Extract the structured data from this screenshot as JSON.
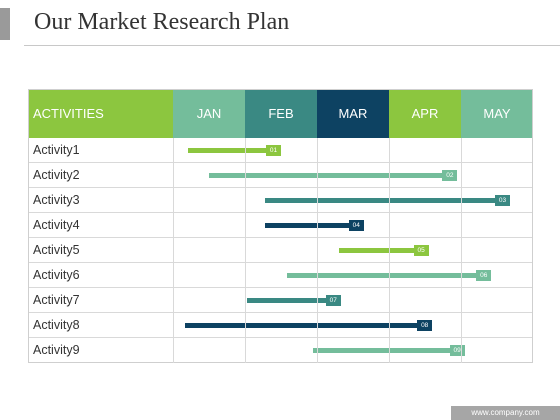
{
  "slide": {
    "title": "Our Market Research Plan"
  },
  "colors": {
    "lime": "#8cc63f",
    "teal_light": "#74bd9b",
    "teal_dark": "#3a8983",
    "navy": "#0d4262",
    "accent_grey": "#9a9a9a",
    "footer_grey": "#a6a6a6"
  },
  "gantt": {
    "activities_header": "ACTIVITIES",
    "activities_header_color": "#8cc63f",
    "months": [
      {
        "label": "JAN",
        "color": "#74bd9b"
      },
      {
        "label": "FEB",
        "color": "#3a8983"
      },
      {
        "label": "MAR",
        "color": "#0d4262"
      },
      {
        "label": "APR",
        "color": "#8cc63f"
      },
      {
        "label": "MAY",
        "color": "#74bd9b"
      }
    ],
    "tasks": [
      {
        "label": "Activity1",
        "tag": "01",
        "start": 0.21,
        "end": 1.5,
        "color": "#8cc63f"
      },
      {
        "label": "Activity2",
        "tag": "02",
        "start": 0.5,
        "end": 3.95,
        "color": "#74bd9b"
      },
      {
        "label": "Activity3",
        "tag": "03",
        "start": 1.28,
        "end": 4.68,
        "color": "#3a8983"
      },
      {
        "label": "Activity4",
        "tag": "04",
        "start": 1.28,
        "end": 2.65,
        "color": "#0d4262"
      },
      {
        "label": "Activity5",
        "tag": "05",
        "start": 2.3,
        "end": 3.55,
        "color": "#8cc63f"
      },
      {
        "label": "Activity6",
        "tag": "06",
        "start": 1.58,
        "end": 4.42,
        "color": "#74bd9b"
      },
      {
        "label": "Activity7",
        "tag": "07",
        "start": 1.03,
        "end": 2.33,
        "color": "#3a8983"
      },
      {
        "label": "Activity8",
        "tag": "08",
        "start": 0.17,
        "end": 3.6,
        "color": "#0d4262"
      },
      {
        "label": "Activity9",
        "tag": "09",
        "start": 1.95,
        "end": 4.05,
        "color": "#74bd9b"
      }
    ]
  },
  "footer": {
    "text": "www.company.com"
  }
}
